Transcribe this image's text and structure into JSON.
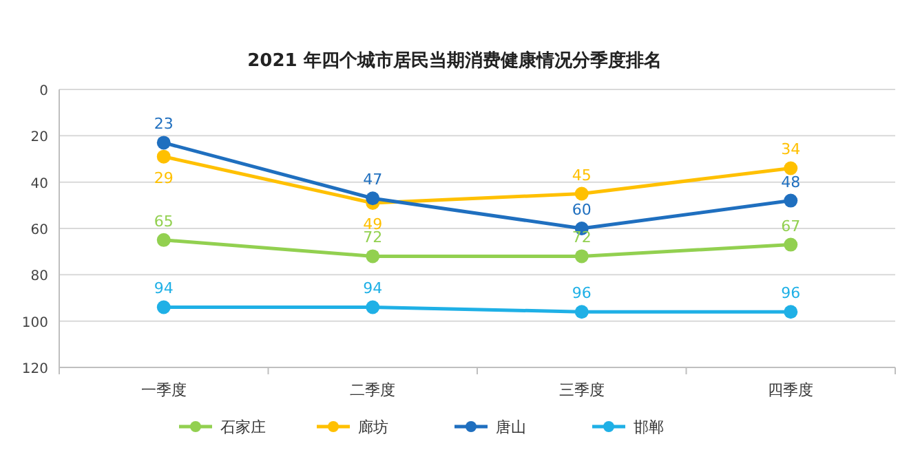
{
  "chart_data": {
    "type": "line",
    "title": "2021 年四个城市居民当期消费健康情况分季度排名",
    "categories": [
      "一季度",
      "二季度",
      "三季度",
      "四季度"
    ],
    "series": [
      {
        "name": "石家庄",
        "color": "#92d050",
        "values": [
          65,
          72,
          72,
          67
        ]
      },
      {
        "name": "廊坊",
        "color": "#ffc000",
        "values": [
          29,
          49,
          45,
          34
        ]
      },
      {
        "name": "唐山",
        "color": "#1f6fbf",
        "values": [
          23,
          47,
          60,
          48
        ]
      },
      {
        "name": "邯郸",
        "color": "#1fb0e6",
        "values": [
          94,
          94,
          96,
          96
        ]
      }
    ],
    "ylim": [
      120,
      0
    ],
    "yticks": [
      0,
      20,
      40,
      60,
      80,
      100,
      120
    ],
    "grid": "y",
    "legend": "bottom",
    "marker": "circle",
    "line_style": "solid",
    "data_labels": true
  }
}
